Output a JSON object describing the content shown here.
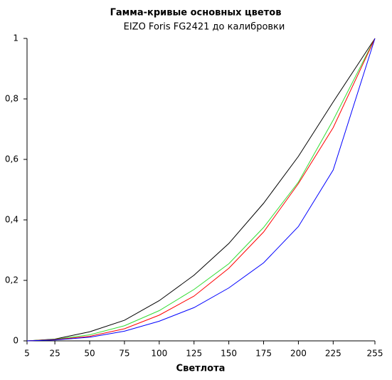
{
  "chart_data": {
    "type": "line",
    "title": "Гамма-кривые  основных цветов",
    "subtitle": "EIZO Foris FG2421 до калибровки",
    "x_label": "Светлота",
    "x": [
      5,
      25,
      50,
      75,
      100,
      125,
      150,
      175,
      200,
      225,
      255
    ],
    "series": [
      {
        "color": "#000000",
        "values": [
          0,
          0.006,
          0.03,
          0.068,
          0.133,
          0.217,
          0.322,
          0.455,
          0.61,
          0.79,
          1
        ]
      },
      {
        "color": "#33dd33",
        "values": [
          0,
          0.005,
          0.02,
          0.05,
          0.1,
          0.17,
          0.255,
          0.375,
          0.525,
          0.73,
          1
        ]
      },
      {
        "color": "#ff0000",
        "values": [
          0,
          0.004,
          0.015,
          0.04,
          0.085,
          0.148,
          0.24,
          0.36,
          0.52,
          0.705,
          1
        ]
      },
      {
        "color": "#0000ff",
        "values": [
          0,
          0.003,
          0.012,
          0.032,
          0.065,
          0.11,
          0.175,
          0.258,
          0.378,
          0.565,
          1
        ]
      }
    ],
    "xlim": [
      5,
      255
    ],
    "xticks": [
      5,
      25,
      50,
      75,
      100,
      125,
      150,
      175,
      200,
      225,
      255
    ],
    "ylim": [
      0,
      1
    ],
    "yticks": [
      0,
      {
        "value": 0.2,
        "label": "0,2"
      },
      {
        "value": 0.4,
        "label": "0,4"
      },
      {
        "value": 0.6,
        "label": "0,6"
      },
      {
        "value": 0.8,
        "label": "0,8"
      },
      1
    ],
    "grid": false
  }
}
